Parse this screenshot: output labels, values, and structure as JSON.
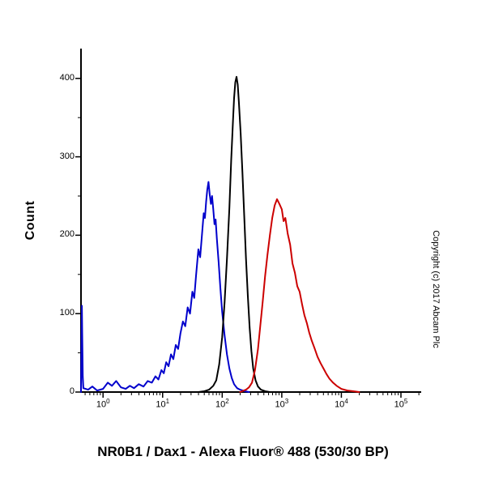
{
  "figure": {
    "caption": "NR0B1 / Dax1 - Alexa Fluor® 488 (530/30 BP)",
    "copyright": "Copyright (c) 2017 Abcam Plc",
    "background": "#ffffff"
  },
  "chart_data": {
    "type": "line",
    "subtype": "flow-cytometry-histogram-overlay",
    "title": "NR0B1 / Dax1 - Alexa Fluor® 488 (530/30 BP)",
    "xlabel": "NR0B1 / Dax1 - Alexa Fluor® 488 (530/30 BP)",
    "ylabel": "Count",
    "legend": "none",
    "grid": false,
    "axis_color": "#000000",
    "x_axis": {
      "scale": "log10",
      "range_log10": [
        -0.37,
        5.34
      ],
      "major_tick_exponents": [
        0,
        1,
        2,
        3,
        4,
        5
      ],
      "tick_label_base": "10"
    },
    "y_axis": {
      "range": [
        0,
        438
      ],
      "major_ticks": [
        0,
        100,
        200,
        300,
        400
      ],
      "minor_tick_step": 50
    },
    "series": [
      {
        "name": "blue-histogram",
        "color": "#0000cc",
        "peak": {
          "x_log10": 1.77,
          "count": 268
        },
        "points": [
          [
            -0.37,
            0
          ],
          [
            -0.36,
            70
          ],
          [
            -0.355,
            110
          ],
          [
            -0.35,
            75
          ],
          [
            -0.34,
            20
          ],
          [
            -0.33,
            5
          ],
          [
            -0.25,
            3
          ],
          [
            -0.18,
            7
          ],
          [
            -0.1,
            2
          ],
          [
            0.0,
            4
          ],
          [
            0.08,
            12
          ],
          [
            0.15,
            8
          ],
          [
            0.22,
            14
          ],
          [
            0.3,
            6
          ],
          [
            0.38,
            4
          ],
          [
            0.45,
            8
          ],
          [
            0.52,
            5
          ],
          [
            0.6,
            10
          ],
          [
            0.68,
            7
          ],
          [
            0.75,
            14
          ],
          [
            0.82,
            12
          ],
          [
            0.88,
            20
          ],
          [
            0.93,
            16
          ],
          [
            0.98,
            28
          ],
          [
            1.02,
            24
          ],
          [
            1.06,
            38
          ],
          [
            1.1,
            33
          ],
          [
            1.14,
            48
          ],
          [
            1.18,
            42
          ],
          [
            1.22,
            60
          ],
          [
            1.26,
            55
          ],
          [
            1.3,
            75
          ],
          [
            1.34,
            90
          ],
          [
            1.38,
            84
          ],
          [
            1.42,
            108
          ],
          [
            1.46,
            100
          ],
          [
            1.5,
            128
          ],
          [
            1.53,
            120
          ],
          [
            1.56,
            148
          ],
          [
            1.6,
            182
          ],
          [
            1.63,
            172
          ],
          [
            1.66,
            200
          ],
          [
            1.69,
            228
          ],
          [
            1.71,
            222
          ],
          [
            1.73,
            243
          ],
          [
            1.75,
            258
          ],
          [
            1.77,
            268
          ],
          [
            1.79,
            252
          ],
          [
            1.81,
            240
          ],
          [
            1.83,
            250
          ],
          [
            1.85,
            233
          ],
          [
            1.87,
            214
          ],
          [
            1.89,
            220
          ],
          [
            1.91,
            196
          ],
          [
            1.94,
            166
          ],
          [
            1.97,
            132
          ],
          [
            2.0,
            102
          ],
          [
            2.04,
            72
          ],
          [
            2.08,
            48
          ],
          [
            2.12,
            30
          ],
          [
            2.16,
            18
          ],
          [
            2.2,
            10
          ],
          [
            2.25,
            5
          ],
          [
            2.3,
            3
          ],
          [
            2.38,
            1
          ],
          [
            2.45,
            0
          ]
        ]
      },
      {
        "name": "black-histogram",
        "color": "#000000",
        "peak": {
          "x_log10": 2.24,
          "count": 402
        },
        "points": [
          [
            1.6,
            0
          ],
          [
            1.7,
            1
          ],
          [
            1.78,
            3
          ],
          [
            1.85,
            8
          ],
          [
            1.9,
            15
          ],
          [
            1.95,
            35
          ],
          [
            2.0,
            70
          ],
          [
            2.04,
            115
          ],
          [
            2.08,
            170
          ],
          [
            2.12,
            235
          ],
          [
            2.15,
            295
          ],
          [
            2.18,
            345
          ],
          [
            2.2,
            375
          ],
          [
            2.22,
            395
          ],
          [
            2.24,
            402
          ],
          [
            2.26,
            392
          ],
          [
            2.28,
            370
          ],
          [
            2.31,
            330
          ],
          [
            2.34,
            280
          ],
          [
            2.37,
            225
          ],
          [
            2.4,
            170
          ],
          [
            2.43,
            122
          ],
          [
            2.46,
            82
          ],
          [
            2.49,
            52
          ],
          [
            2.52,
            30
          ],
          [
            2.56,
            15
          ],
          [
            2.6,
            7
          ],
          [
            2.65,
            3
          ],
          [
            2.72,
            1
          ],
          [
            2.8,
            0
          ]
        ]
      },
      {
        "name": "red-histogram",
        "color": "#cc0000",
        "peak": {
          "x_log10": 2.92,
          "count": 246
        },
        "points": [
          [
            2.3,
            0
          ],
          [
            2.4,
            3
          ],
          [
            2.45,
            6
          ],
          [
            2.5,
            12
          ],
          [
            2.55,
            28
          ],
          [
            2.6,
            55
          ],
          [
            2.64,
            85
          ],
          [
            2.68,
            115
          ],
          [
            2.72,
            148
          ],
          [
            2.76,
            175
          ],
          [
            2.8,
            200
          ],
          [
            2.84,
            222
          ],
          [
            2.88,
            238
          ],
          [
            2.92,
            246
          ],
          [
            2.96,
            240
          ],
          [
            3.0,
            233
          ],
          [
            3.03,
            218
          ],
          [
            3.06,
            222
          ],
          [
            3.1,
            202
          ],
          [
            3.14,
            188
          ],
          [
            3.18,
            164
          ],
          [
            3.22,
            152
          ],
          [
            3.26,
            135
          ],
          [
            3.3,
            128
          ],
          [
            3.34,
            112
          ],
          [
            3.38,
            98
          ],
          [
            3.42,
            88
          ],
          [
            3.46,
            76
          ],
          [
            3.5,
            66
          ],
          [
            3.55,
            56
          ],
          [
            3.6,
            45
          ],
          [
            3.65,
            37
          ],
          [
            3.7,
            30
          ],
          [
            3.75,
            23
          ],
          [
            3.8,
            17
          ],
          [
            3.86,
            12
          ],
          [
            3.92,
            8
          ],
          [
            4.0,
            4
          ],
          [
            4.1,
            2
          ],
          [
            4.2,
            1
          ],
          [
            4.3,
            0
          ]
        ]
      }
    ]
  }
}
